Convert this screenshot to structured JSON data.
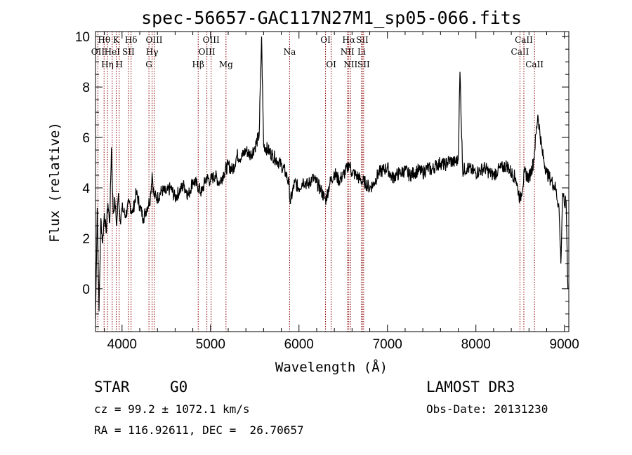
{
  "chart_data": {
    "type": "line",
    "title": "spec-56657-GAC117N27M1_sp05-066.fits",
    "xlabel": "Wavelength (Å)",
    "ylabel": "Flux (relative)",
    "xlim": [
      3700,
      9050
    ],
    "ylim": [
      -1.7,
      10.2
    ],
    "xticks": [
      4000,
      5000,
      6000,
      7000,
      8000,
      9000
    ],
    "yticks": [
      0,
      2,
      4,
      6,
      8,
      10
    ],
    "grid": false,
    "series": [
      {
        "x": [
          3700,
          3720,
          3740,
          3760,
          3780,
          3800,
          3820,
          3840,
          3860,
          3880,
          3900,
          3920,
          3940,
          3960,
          3980,
          4000,
          4040,
          4080,
          4120,
          4160,
          4200,
          4240,
          4280,
          4320,
          4340,
          4360,
          4400,
          4450,
          4500,
          4550,
          4600,
          4650,
          4700,
          4750,
          4800,
          4850,
          4900,
          4950,
          5000,
          5050,
          5100,
          5150,
          5200,
          5250,
          5300,
          5350,
          5400,
          5450,
          5500,
          5550,
          5577,
          5600,
          5650,
          5700,
          5750,
          5800,
          5850,
          5890,
          5900,
          5950,
          6000,
          6050,
          6100,
          6150,
          6200,
          6250,
          6300,
          6350,
          6400,
          6450,
          6500,
          6550,
          6563,
          6600,
          6650,
          6700,
          6750,
          6800,
          6850,
          6900,
          6950,
          7000,
          7050,
          7100,
          7150,
          7200,
          7250,
          7300,
          7350,
          7400,
          7450,
          7500,
          7550,
          7600,
          7650,
          7700,
          7750,
          7800,
          7820,
          7850,
          7900,
          7950,
          8000,
          8050,
          8100,
          8150,
          8200,
          8250,
          8300,
          8350,
          8400,
          8450,
          8500,
          8550,
          8600,
          8650,
          8700,
          8750,
          8800,
          8850,
          8900,
          8940,
          8960,
          8980,
          9000,
          9020,
          9040
        ],
        "y": [
          -1.2,
          3.2,
          -0.9,
          2.8,
          1.8,
          3.0,
          2.2,
          3.4,
          2.6,
          5.6,
          3.0,
          3.5,
          2.5,
          3.8,
          2.7,
          3.2,
          2.9,
          3.4,
          3.0,
          3.8,
          3.3,
          2.8,
          3.2,
          3.6,
          4.6,
          3.7,
          3.6,
          3.9,
          3.8,
          4.0,
          3.6,
          3.9,
          4.1,
          3.7,
          4.3,
          4.1,
          3.8,
          4.4,
          4.3,
          4.5,
          4.2,
          4.6,
          4.9,
          4.7,
          5.3,
          5.2,
          5.5,
          5.3,
          5.6,
          6.1,
          10.0,
          5.7,
          5.5,
          5.3,
          5.1,
          4.9,
          4.6,
          4.1,
          3.4,
          4.2,
          4.0,
          4.3,
          4.1,
          4.4,
          4.2,
          3.9,
          3.5,
          4.2,
          4.6,
          4.3,
          4.5,
          4.8,
          5.0,
          4.6,
          4.5,
          4.3,
          4.2,
          4.0,
          4.2,
          4.6,
          4.7,
          4.8,
          4.4,
          4.5,
          4.6,
          4.7,
          4.5,
          4.6,
          4.7,
          4.6,
          4.8,
          4.7,
          4.9,
          5.0,
          4.9,
          5.1,
          5.0,
          5.1,
          8.6,
          4.7,
          4.8,
          4.7,
          4.6,
          4.7,
          4.8,
          4.6,
          4.5,
          4.7,
          4.8,
          4.9,
          4.6,
          4.4,
          3.5,
          4.6,
          4.4,
          5.0,
          6.9,
          5.4,
          4.6,
          4.3,
          4.0,
          3.2,
          1.0,
          3.8,
          3.3,
          3.5,
          0.0
        ]
      }
    ],
    "line_markers": [
      {
        "label": "OII",
        "wave": 3727,
        "row": 1
      },
      {
        "label": "Hθ",
        "wave": 3797,
        "row": 0
      },
      {
        "label": "Hη",
        "wave": 3835,
        "row": 2
      },
      {
        "label": "HeI",
        "wave": 3889,
        "row": 1
      },
      {
        "label": "K",
        "wave": 3934,
        "row": 0
      },
      {
        "label": "H",
        "wave": 3968,
        "row": 2
      },
      {
        "label": "SII",
        "wave": 4072,
        "row": 1
      },
      {
        "label": "Hδ",
        "wave": 4102,
        "row": 0
      },
      {
        "label": "G",
        "wave": 4304,
        "row": 2
      },
      {
        "label": "Hγ",
        "wave": 4340,
        "row": 1
      },
      {
        "label": "OIII",
        "wave": 4363,
        "row": 0
      },
      {
        "label": "Hβ",
        "wave": 4861,
        "row": 2
      },
      {
        "label": "OIII",
        "wave": 4959,
        "row": 1
      },
      {
        "label": "OIII",
        "wave": 5007,
        "row": 0
      },
      {
        "label": "Mg",
        "wave": 5175,
        "row": 2
      },
      {
        "label": "Na",
        "wave": 5894,
        "row": 1
      },
      {
        "label": "OI",
        "wave": 6300,
        "row": 0
      },
      {
        "label": "OI",
        "wave": 6364,
        "row": 2
      },
      {
        "label": "NII",
        "wave": 6548,
        "row": 1
      },
      {
        "label": "Hα",
        "wave": 6563,
        "row": 0
      },
      {
        "label": "NII",
        "wave": 6583,
        "row": 2
      },
      {
        "label": "Li",
        "wave": 6708,
        "row": 1
      },
      {
        "label": "SII",
        "wave": 6716,
        "row": 0
      },
      {
        "label": "SII",
        "wave": 6731,
        "row": 2
      },
      {
        "label": "CaII",
        "wave": 8498,
        "row": 1
      },
      {
        "label": "CaII",
        "wave": 8542,
        "row": 0
      },
      {
        "label": "CaII",
        "wave": 8662,
        "row": 2
      }
    ],
    "colors": {
      "spectrum": "#000000",
      "markers": "#8b0000",
      "axes": "#000000"
    }
  },
  "info": {
    "class": "STAR",
    "subclass": "G0",
    "survey": "LAMOST DR3",
    "cz": "cz = 99.2 ± 1072.1 km/s",
    "obs_date": "Obs-Date: 20131230",
    "radec": "RA = 116.92611, DEC =  26.70657"
  }
}
